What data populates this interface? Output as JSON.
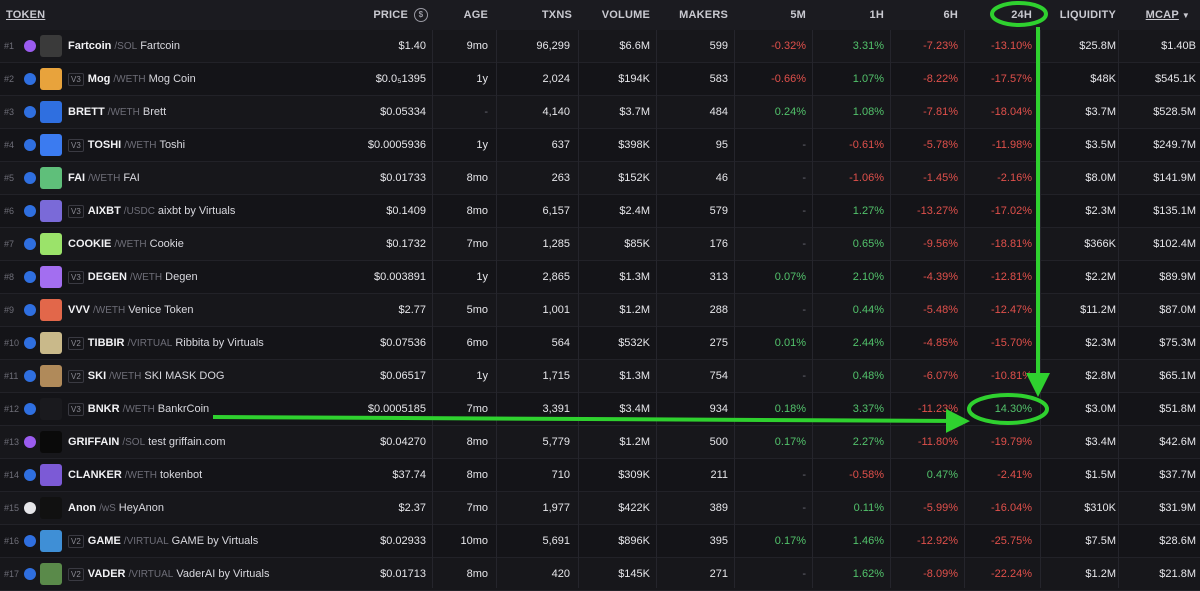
{
  "header": {
    "token": "TOKEN",
    "price": "PRICE",
    "age": "AGE",
    "txns": "TXNS",
    "volume": "VOLUME",
    "makers": "MAKERS",
    "m5": "5M",
    "h1": "1H",
    "h6": "6H",
    "h24": "24H",
    "liquidity": "LIQUIDITY",
    "mcap": "MCAP",
    "sort_icon": "sort-desc-icon",
    "price_icon": "dollar-circle-icon"
  },
  "colors": {
    "positive": "#52c26b",
    "negative": "#e0504b",
    "annotation": "#2fd12f"
  },
  "rows": [
    {
      "rank": "#1",
      "chain": "solana",
      "version": "",
      "symbol": "Fartcoin",
      "pair": "/SOL",
      "name": "Fartcoin",
      "price": "$1.40",
      "age": "9mo",
      "txns": "96,299",
      "volume": "$6.6M",
      "makers": "599",
      "m5": "-0.32%",
      "h1": "3.31%",
      "h6": "-7.23%",
      "h24": "-13.10%",
      "liquidity": "$25.8M",
      "mcap": "$1.40B",
      "icon_color": "#3a3a3a"
    },
    {
      "rank": "#2",
      "chain": "base",
      "version": "V3",
      "symbol": "Mog",
      "pair": "/WETH",
      "name": "Mog Coin",
      "price": "$0.0₅1395",
      "age": "1y",
      "txns": "2,024",
      "volume": "$194K",
      "makers": "583",
      "m5": "-0.66%",
      "h1": "1.07%",
      "h6": "-8.22%",
      "h24": "-17.57%",
      "liquidity": "$48K",
      "mcap": "$545.1K",
      "icon_color": "#e8a33c"
    },
    {
      "rank": "#3",
      "chain": "base",
      "version": "",
      "symbol": "BRETT",
      "pair": "/WETH",
      "name": "Brett",
      "price": "$0.05334",
      "age": "-",
      "txns": "4,140",
      "volume": "$3.7M",
      "makers": "484",
      "m5": "0.24%",
      "h1": "1.08%",
      "h6": "-7.81%",
      "h24": "-18.04%",
      "liquidity": "$3.7M",
      "mcap": "$528.5M",
      "icon_color": "#2f6fe0"
    },
    {
      "rank": "#4",
      "chain": "base",
      "version": "V3",
      "symbol": "TOSHI",
      "pair": "/WETH",
      "name": "Toshi",
      "price": "$0.0005936",
      "age": "1y",
      "txns": "637",
      "volume": "$398K",
      "makers": "95",
      "m5": "-",
      "h1": "-0.61%",
      "h6": "-5.78%",
      "h24": "-11.98%",
      "liquidity": "$3.5M",
      "mcap": "$249.7M",
      "icon_color": "#3b7bf0"
    },
    {
      "rank": "#5",
      "chain": "base",
      "version": "",
      "symbol": "FAI",
      "pair": "/WETH",
      "name": "FAI",
      "price": "$0.01733",
      "age": "8mo",
      "txns": "263",
      "volume": "$152K",
      "makers": "46",
      "m5": "-",
      "h1": "-1.06%",
      "h6": "-1.45%",
      "h24": "-2.16%",
      "liquidity": "$8.0M",
      "mcap": "$141.9M",
      "icon_color": "#5fbf7a"
    },
    {
      "rank": "#6",
      "chain": "base",
      "version": "V3",
      "symbol": "AIXBT",
      "pair": "/USDC",
      "name": "aixbt by Virtuals",
      "price": "$0.1409",
      "age": "8mo",
      "txns": "6,157",
      "volume": "$2.4M",
      "makers": "579",
      "m5": "-",
      "h1": "1.27%",
      "h6": "-13.27%",
      "h24": "-17.02%",
      "liquidity": "$2.3M",
      "mcap": "$135.1M",
      "icon_color": "#7a6ad8"
    },
    {
      "rank": "#7",
      "chain": "base",
      "version": "",
      "symbol": "COOKIE",
      "pair": "/WETH",
      "name": "Cookie",
      "price": "$0.1732",
      "age": "7mo",
      "txns": "1,285",
      "volume": "$85K",
      "makers": "176",
      "m5": "-",
      "h1": "0.65%",
      "h6": "-9.56%",
      "h24": "-18.81%",
      "liquidity": "$366K",
      "mcap": "$102.4M",
      "icon_color": "#9be36a"
    },
    {
      "rank": "#8",
      "chain": "base",
      "version": "V3",
      "symbol": "DEGEN",
      "pair": "/WETH",
      "name": "Degen",
      "price": "$0.003891",
      "age": "1y",
      "txns": "2,865",
      "volume": "$1.3M",
      "makers": "313",
      "m5": "0.07%",
      "h1": "2.10%",
      "h6": "-4.39%",
      "h24": "-12.81%",
      "liquidity": "$2.2M",
      "mcap": "$89.9M",
      "icon_color": "#a36ef0"
    },
    {
      "rank": "#9",
      "chain": "base",
      "version": "",
      "symbol": "VVV",
      "pair": "/WETH",
      "name": "Venice Token",
      "price": "$2.77",
      "age": "5mo",
      "txns": "1,001",
      "volume": "$1.2M",
      "makers": "288",
      "m5": "-",
      "h1": "0.44%",
      "h6": "-5.48%",
      "h24": "-12.47%",
      "liquidity": "$11.2M",
      "mcap": "$87.0M",
      "icon_color": "#e2674a"
    },
    {
      "rank": "#10",
      "chain": "base",
      "version": "V2",
      "symbol": "TIBBIR",
      "pair": "/VIRTUAL",
      "name": "Ribbita by Virtuals",
      "price": "$0.07536",
      "age": "6mo",
      "txns": "564",
      "volume": "$532K",
      "makers": "275",
      "m5": "0.01%",
      "h1": "2.44%",
      "h6": "-4.85%",
      "h24": "-15.70%",
      "liquidity": "$2.3M",
      "mcap": "$75.3M",
      "icon_color": "#c9b98a"
    },
    {
      "rank": "#11",
      "chain": "base",
      "version": "V2",
      "symbol": "SKI",
      "pair": "/WETH",
      "name": "SKI MASK DOG",
      "price": "$0.06517",
      "age": "1y",
      "txns": "1,715",
      "volume": "$1.3M",
      "makers": "754",
      "m5": "-",
      "h1": "0.48%",
      "h6": "-6.07%",
      "h24": "-10.81%",
      "liquidity": "$2.8M",
      "mcap": "$65.1M",
      "icon_color": "#b08a5a"
    },
    {
      "rank": "#12",
      "chain": "base",
      "version": "V3",
      "symbol": "BNKR",
      "pair": "/WETH",
      "name": "BankrCoin",
      "price": "$0.0005185",
      "age": "7mo",
      "txns": "3,391",
      "volume": "$3.4M",
      "makers": "934",
      "m5": "0.18%",
      "h1": "3.37%",
      "h6": "-11.23%",
      "h24": "14.30%",
      "liquidity": "$3.0M",
      "mcap": "$51.8M",
      "icon_color": "#1a1a1e"
    },
    {
      "rank": "#13",
      "chain": "solana",
      "version": "",
      "symbol": "GRIFFAIN",
      "pair": "/SOL",
      "name": "test griffain.com",
      "price": "$0.04270",
      "age": "8mo",
      "txns": "5,779",
      "volume": "$1.2M",
      "makers": "500",
      "m5": "0.17%",
      "h1": "2.27%",
      "h6": "-11.80%",
      "h24": "-19.79%",
      "liquidity": "$3.4M",
      "mcap": "$42.6M",
      "icon_color": "#0a0a0a"
    },
    {
      "rank": "#14",
      "chain": "base",
      "version": "",
      "symbol": "CLANKER",
      "pair": "/WETH",
      "name": "tokenbot",
      "price": "$37.74",
      "age": "8mo",
      "txns": "710",
      "volume": "$309K",
      "makers": "211",
      "m5": "-",
      "h1": "-0.58%",
      "h6": "0.47%",
      "h24": "-2.41%",
      "liquidity": "$1.5M",
      "mcap": "$37.7M",
      "icon_color": "#7c5ad6"
    },
    {
      "rank": "#15",
      "chain": "sonic",
      "version": "",
      "symbol": "Anon",
      "pair": "/wS",
      "name": "HeyAnon",
      "price": "$2.37",
      "age": "7mo",
      "txns": "1,977",
      "volume": "$422K",
      "makers": "389",
      "m5": "-",
      "h1": "0.11%",
      "h6": "-5.99%",
      "h24": "-16.04%",
      "liquidity": "$310K",
      "mcap": "$31.9M",
      "icon_color": "#111111"
    },
    {
      "rank": "#16",
      "chain": "base",
      "version": "V2",
      "symbol": "GAME",
      "pair": "/VIRTUAL",
      "name": "GAME by Virtuals",
      "price": "$0.02933",
      "age": "10mo",
      "txns": "5,691",
      "volume": "$896K",
      "makers": "395",
      "m5": "0.17%",
      "h1": "1.46%",
      "h6": "-12.92%",
      "h24": "-25.75%",
      "liquidity": "$7.5M",
      "mcap": "$28.6M",
      "icon_color": "#3f8fd6"
    },
    {
      "rank": "#17",
      "chain": "base",
      "version": "V2",
      "symbol": "VADER",
      "pair": "/VIRTUAL",
      "name": "VaderAI by Virtuals",
      "price": "$0.01713",
      "age": "8mo",
      "txns": "420",
      "volume": "$145K",
      "makers": "271",
      "m5": "-",
      "h1": "1.62%",
      "h6": "-8.09%",
      "h24": "-22.24%",
      "liquidity": "$1.2M",
      "mcap": "$21.8M",
      "icon_color": "#5a8a4a"
    }
  ]
}
